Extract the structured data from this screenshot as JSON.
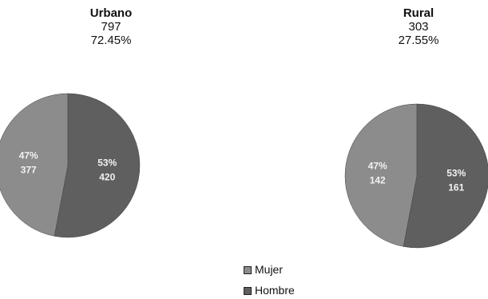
{
  "chart_data": [
    {
      "type": "pie",
      "title": "Urbano",
      "count": "797",
      "percent": "72.45%",
      "categories": [
        "Mujer",
        "Hombre"
      ],
      "values": [
        47,
        53
      ],
      "slice_labels": [
        [
          "47%",
          "377"
        ],
        [
          "53%",
          "420"
        ]
      ]
    },
    {
      "type": "pie",
      "title": "Rural",
      "count": "303",
      "percent": "27.55%",
      "categories": [
        "Mujer",
        "Hombre"
      ],
      "values": [
        47,
        53
      ],
      "slice_labels": [
        [
          "47%",
          "142"
        ],
        [
          "53%",
          "161"
        ]
      ]
    }
  ],
  "legend": {
    "placement": "bottom-center",
    "items": [
      "Mujer",
      "Hombre"
    ]
  },
  "colors": {
    "mujer": "#8c8c8c",
    "hombre": "#5f5f5f",
    "label": "#f2f2f2"
  }
}
